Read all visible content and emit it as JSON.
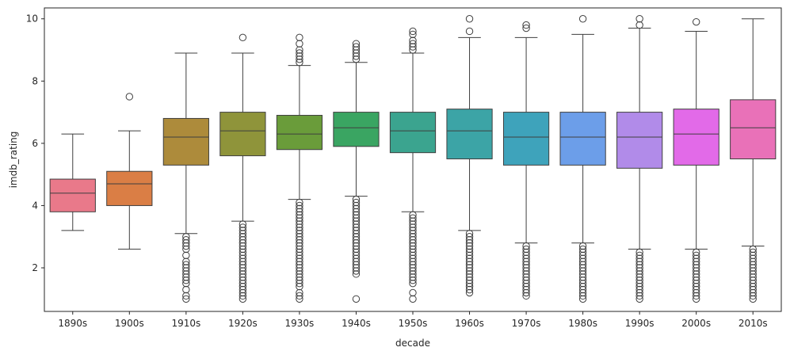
{
  "chart_data": {
    "type": "box",
    "xlabel": "decade",
    "ylabel": "imdb_rating",
    "ylim": [
      0.6,
      10.35
    ],
    "yticks": [
      2,
      4,
      6,
      8,
      10
    ],
    "grid": false,
    "categories": [
      "1890s",
      "1900s",
      "1910s",
      "1920s",
      "1930s",
      "1940s",
      "1950s",
      "1960s",
      "1970s",
      "1980s",
      "1990s",
      "2000s",
      "2010s"
    ],
    "colors": [
      "#e9798a",
      "#da7e45",
      "#ad8b3b",
      "#8f943a",
      "#6a9c3a",
      "#3aa562",
      "#3ba48f",
      "#3ca4a6",
      "#3ea3bb",
      "#6c9ee9",
      "#b18be9",
      "#e26ae8",
      "#e971b8"
    ],
    "boxes": [
      {
        "whislo": 3.2,
        "q1": 3.8,
        "med": 4.4,
        "q3": 4.85,
        "whishi": 6.3,
        "fliers": []
      },
      {
        "whislo": 2.6,
        "q1": 4.0,
        "med": 4.7,
        "q3": 5.1,
        "whishi": 6.4,
        "fliers": [
          7.5
        ]
      },
      {
        "whislo": 3.1,
        "q1": 5.3,
        "med": 6.2,
        "q3": 6.8,
        "whishi": 8.9,
        "fliers": [
          3.0,
          2.9,
          2.8,
          2.7,
          2.6,
          2.4,
          2.2,
          2.1,
          2.0,
          1.9,
          1.8,
          1.7,
          1.6,
          1.5,
          1.3,
          1.1,
          1.0
        ]
      },
      {
        "whislo": 3.5,
        "q1": 5.6,
        "med": 6.4,
        "q3": 7.0,
        "whishi": 8.9,
        "fliers": [
          9.4,
          3.4,
          3.3,
          3.2,
          3.1,
          3.0,
          2.9,
          2.8,
          2.7,
          2.6,
          2.5,
          2.4,
          2.3,
          2.2,
          2.1,
          2.0,
          1.9,
          1.8,
          1.7,
          1.6,
          1.5,
          1.4,
          1.3,
          1.2,
          1.1,
          1.0
        ]
      },
      {
        "whislo": 4.2,
        "q1": 5.8,
        "med": 6.3,
        "q3": 6.9,
        "whishi": 8.5,
        "fliers": [
          8.6,
          8.7,
          8.8,
          8.9,
          9.0,
          9.2,
          9.4,
          4.1,
          4.0,
          3.9,
          3.8,
          3.7,
          3.6,
          3.5,
          3.4,
          3.3,
          3.2,
          3.1,
          3.0,
          2.9,
          2.8,
          2.7,
          2.6,
          2.5,
          2.4,
          2.3,
          2.2,
          2.1,
          2.0,
          1.9,
          1.8,
          1.7,
          1.6,
          1.5,
          1.4,
          1.2,
          1.1,
          1.0
        ]
      },
      {
        "whislo": 4.3,
        "q1": 5.9,
        "med": 6.5,
        "q3": 7.0,
        "whishi": 8.6,
        "fliers": [
          8.7,
          8.8,
          8.9,
          9.0,
          9.1,
          9.2,
          4.2,
          4.1,
          4.0,
          3.9,
          3.8,
          3.7,
          3.6,
          3.5,
          3.4,
          3.3,
          3.2,
          3.1,
          3.0,
          2.9,
          2.8,
          2.7,
          2.6,
          2.5,
          2.4,
          2.3,
          2.2,
          2.1,
          2.0,
          1.9,
          1.8,
          1.0
        ]
      },
      {
        "whislo": 3.8,
        "q1": 5.7,
        "med": 6.4,
        "q3": 7.0,
        "whishi": 8.9,
        "fliers": [
          9.0,
          9.1,
          9.2,
          9.3,
          9.5,
          9.6,
          3.7,
          3.6,
          3.5,
          3.4,
          3.3,
          3.2,
          3.1,
          3.0,
          2.9,
          2.8,
          2.7,
          2.6,
          2.5,
          2.4,
          2.3,
          2.2,
          2.1,
          2.0,
          1.9,
          1.8,
          1.7,
          1.6,
          1.5,
          1.2,
          1.0
        ]
      },
      {
        "whislo": 3.2,
        "q1": 5.5,
        "med": 6.4,
        "q3": 7.1,
        "whishi": 9.4,
        "fliers": [
          9.6,
          10.0,
          3.1,
          3.0,
          2.9,
          2.8,
          2.7,
          2.6,
          2.5,
          2.4,
          2.3,
          2.2,
          2.1,
          2.0,
          1.9,
          1.8,
          1.7,
          1.6,
          1.5,
          1.4,
          1.3,
          1.2
        ]
      },
      {
        "whislo": 2.8,
        "q1": 5.3,
        "med": 6.2,
        "q3": 7.0,
        "whishi": 9.4,
        "fliers": [
          9.7,
          9.8,
          2.7,
          2.6,
          2.5,
          2.4,
          2.3,
          2.2,
          2.1,
          2.0,
          1.9,
          1.8,
          1.7,
          1.6,
          1.5,
          1.4,
          1.3,
          1.2,
          1.1
        ]
      },
      {
        "whislo": 2.8,
        "q1": 5.3,
        "med": 6.2,
        "q3": 7.0,
        "whishi": 9.5,
        "fliers": [
          10.0,
          2.7,
          2.6,
          2.5,
          2.4,
          2.3,
          2.2,
          2.1,
          2.0,
          1.9,
          1.8,
          1.7,
          1.6,
          1.5,
          1.4,
          1.3,
          1.2,
          1.1,
          1.0
        ]
      },
      {
        "whislo": 2.6,
        "q1": 5.2,
        "med": 6.2,
        "q3": 7.0,
        "whishi": 9.7,
        "fliers": [
          9.8,
          10.0,
          2.5,
          2.4,
          2.3,
          2.2,
          2.1,
          2.0,
          1.9,
          1.8,
          1.7,
          1.6,
          1.5,
          1.4,
          1.3,
          1.2,
          1.1,
          1.0
        ]
      },
      {
        "whislo": 2.6,
        "q1": 5.3,
        "med": 6.3,
        "q3": 7.1,
        "whishi": 9.6,
        "fliers": [
          9.9,
          2.5,
          2.4,
          2.3,
          2.2,
          2.1,
          2.0,
          1.9,
          1.8,
          1.7,
          1.6,
          1.5,
          1.4,
          1.3,
          1.2,
          1.1,
          1.0
        ]
      },
      {
        "whislo": 2.7,
        "q1": 5.5,
        "med": 6.5,
        "q3": 7.4,
        "whishi": 10.0,
        "fliers": [
          2.6,
          2.5,
          2.4,
          2.3,
          2.2,
          2.1,
          2.0,
          1.9,
          1.8,
          1.7,
          1.6,
          1.5,
          1.4,
          1.3,
          1.2,
          1.1,
          1.0
        ]
      }
    ]
  }
}
